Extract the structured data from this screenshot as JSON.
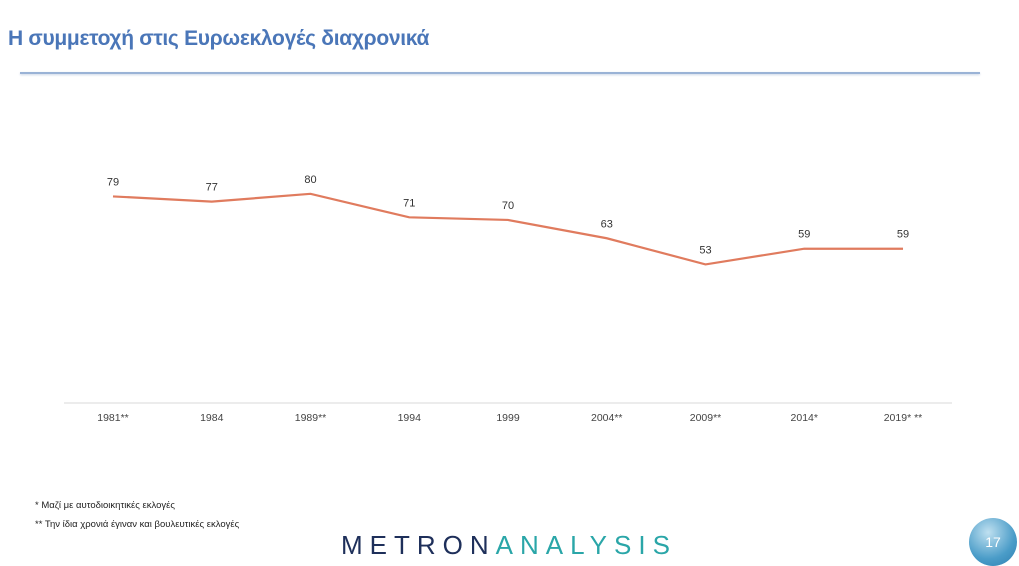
{
  "header": {
    "title": "Η συμμετοχή στις Ευρωεκλογές διαχρονικά"
  },
  "chart_data": {
    "type": "line",
    "title": "",
    "categories": [
      "1981**",
      "1984",
      "1989**",
      "1994",
      "1999",
      "2004**",
      "2009**",
      "2014*",
      "2019* **"
    ],
    "series": [
      {
        "values": [
          79,
          77,
          80,
          71,
          70,
          63,
          53,
          59,
          59
        ],
        "color": "#e07b5e"
      }
    ],
    "ylim": [
      0,
      100
    ],
    "grid": false,
    "data_labels": true
  },
  "footnotes": [
    "* Μαζί με αυτοδιοικητικές εκλογές",
    "** Την ίδια χρονιά έγιναν και βουλευτικές εκλογές"
  ],
  "logo": {
    "part1": "METRON",
    "part2": "ANALYSIS"
  },
  "page_number": "17"
}
